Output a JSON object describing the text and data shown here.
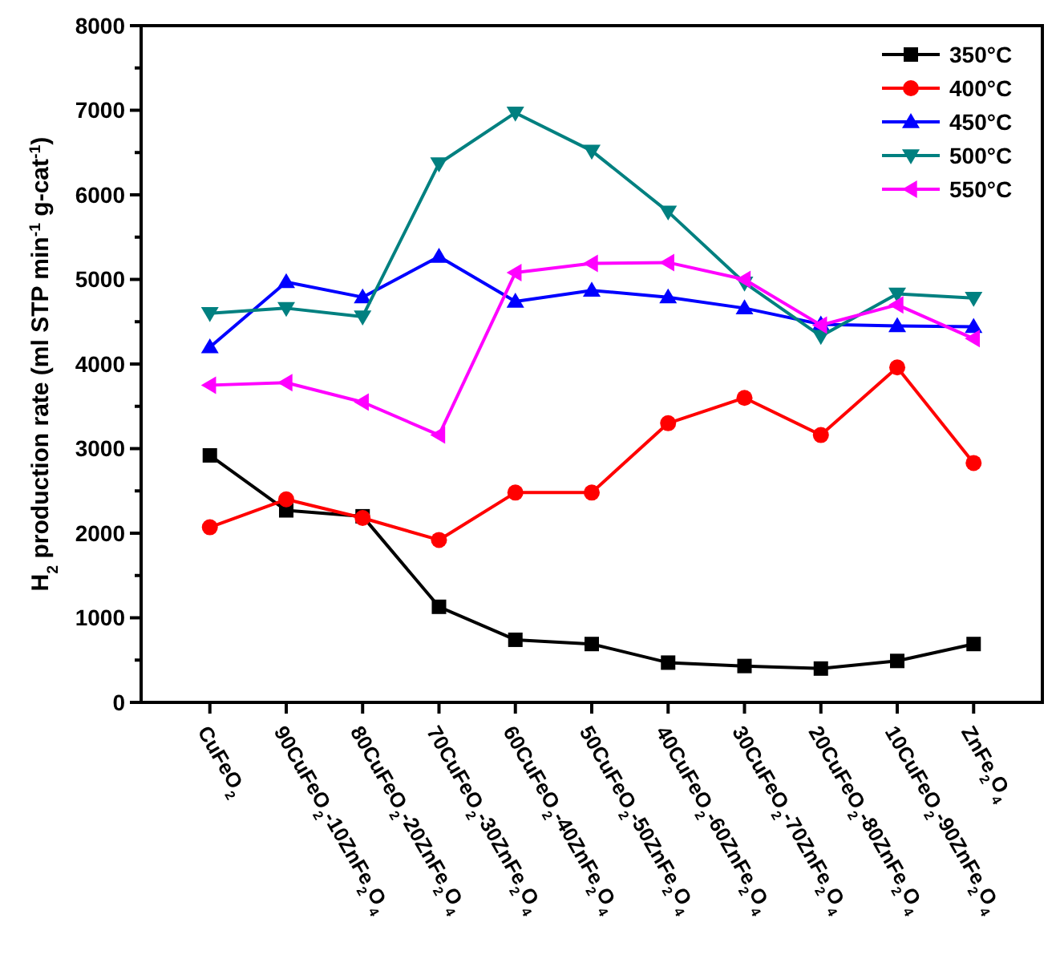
{
  "chart_data": {
    "type": "line",
    "ylabel": "H$_{2}$ production rate (ml STP min$^{-1}$ g-cat$^{-1}$)",
    "categories": [
      "CuFeO$_{2}$",
      "90CuFeO$_{2}$-10ZnFe$_{2}$O$_{4}$",
      "80CuFeO$_{2}$-20ZnFe$_{2}$O$_{4}$",
      "70CuFeO$_{2}$-30ZnFe$_{2}$O$_{4}$",
      "60CuFeO$_{2}$-40ZnFe$_{2}$O$_{4}$",
      "50CuFeO$_{2}$-50ZnFe$_{2}$O$_{4}$",
      "40CuFeO$_{2}$-60ZnFe$_{2}$O$_{4}$",
      "30CuFeO$_{2}$-70ZnFe$_{2}$O$_{4}$",
      "20CuFeO$_{2}$-80ZnFe$_{2}$O$_{4}$",
      "10CuFeO$_{2}$-90ZnFe$_{2}$O$_{4}$",
      "ZnFe$_{2}$O$_{4}$"
    ],
    "series": [
      {
        "name": "350°C",
        "color": "#000000",
        "marker": "square",
        "values": [
          2920,
          2270,
          2200,
          1130,
          740,
          690,
          470,
          430,
          400,
          490,
          690
        ]
      },
      {
        "name": "400°C",
        "color": "#ff0000",
        "marker": "circle",
        "values": [
          2070,
          2400,
          2180,
          1920,
          2480,
          2480,
          3300,
          3600,
          3160,
          3960,
          2830
        ]
      },
      {
        "name": "450°C",
        "color": "#0000ff",
        "marker": "triangle",
        "values": [
          4200,
          4970,
          4790,
          5270,
          4740,
          4870,
          4790,
          4660,
          4470,
          4450,
          4440
        ]
      },
      {
        "name": "500°C",
        "color": "#008080",
        "marker": "triangle-down",
        "values": [
          4600,
          4660,
          4560,
          6370,
          6970,
          6520,
          5800,
          4960,
          4330,
          4830,
          4780
        ]
      },
      {
        "name": "550°C",
        "color": "#ff00ff",
        "marker": "triangle-left",
        "values": [
          3750,
          3780,
          3550,
          3160,
          5080,
          5190,
          5200,
          5000,
          4460,
          4700,
          4300
        ]
      }
    ],
    "ylim": [
      0,
      8000
    ],
    "yticks": [
      0,
      {
        "value": 500,
        "label": null
      },
      1000,
      {
        "value": 1500,
        "label": null
      },
      2000,
      {
        "value": 2500,
        "label": null
      },
      3000,
      {
        "value": 3500,
        "label": null
      },
      4000,
      {
        "value": 4500,
        "label": null
      },
      5000,
      {
        "value": 5500,
        "label": null
      },
      6000,
      {
        "value": 6500,
        "label": null
      },
      7000,
      {
        "value": 7500,
        "label": null
      },
      8000
    ],
    "grid": false,
    "legend": "top right"
  }
}
